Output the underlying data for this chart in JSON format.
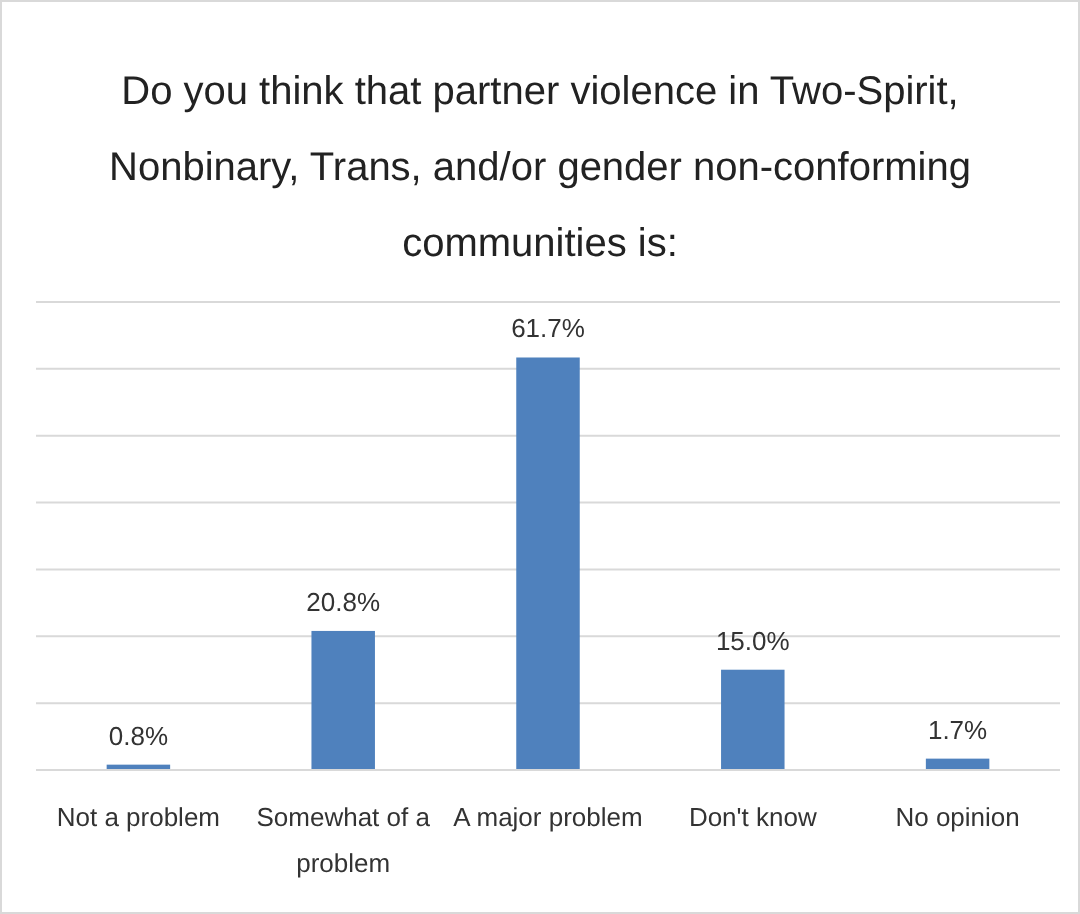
{
  "chart_data": {
    "type": "bar",
    "title": "Do you think that partner violence in Two-Spirit, Nonbinary, Trans, and/or gender non-conforming communities is:",
    "categories": [
      "Not a problem",
      "Somewhat of a problem",
      "A major problem",
      "Don't know",
      "No opinion"
    ],
    "values": [
      0.8,
      20.8,
      61.7,
      15.0,
      1.7
    ],
    "value_labels": [
      "0.8%",
      "20.8%",
      "61.7%",
      "15.0%",
      "1.7%"
    ],
    "color": "#4f81bd",
    "ylim": [
      0,
      70
    ],
    "yticks": [
      {
        "value": 0,
        "label": null
      },
      {
        "value": 10,
        "label": null
      },
      {
        "value": 20,
        "label": null
      },
      {
        "value": 30,
        "label": null
      },
      {
        "value": 40,
        "label": null
      },
      {
        "value": 50,
        "label": null
      },
      {
        "value": 60,
        "label": null
      },
      {
        "value": 70,
        "label": null
      }
    ],
    "grid": "y",
    "tick_labels": "x"
  }
}
